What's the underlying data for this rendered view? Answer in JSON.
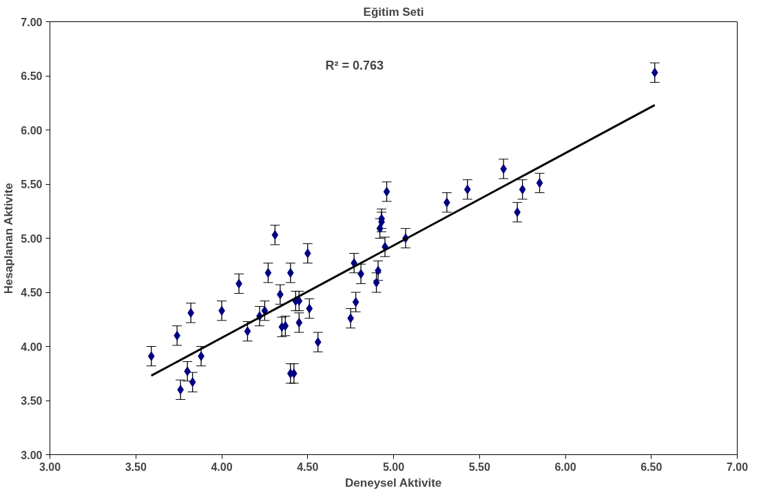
{
  "chart_data": {
    "type": "scatter",
    "title": "Eğitim Seti",
    "xlabel": "Deneysel Aktivite",
    "ylabel": "Hesaplanan Aktivite",
    "annotations": [
      "R² = 0.763"
    ],
    "xlim": [
      3,
      7
    ],
    "ylim": [
      3,
      7
    ],
    "xticks": [
      {
        "value": 3,
        "label": "3.00"
      },
      {
        "value": 3.5,
        "label": "3.50"
      },
      {
        "value": 4,
        "label": "4.00"
      },
      {
        "value": 4.5,
        "label": "4.50"
      },
      {
        "value": 5,
        "label": "5.00"
      },
      {
        "value": 5.5,
        "label": "5.50"
      },
      {
        "value": 6,
        "label": "6.00"
      },
      {
        "value": 6.5,
        "label": "6.50"
      },
      {
        "value": 7,
        "label": "7.00"
      }
    ],
    "yticks": [
      {
        "value": 3,
        "label": "3.00"
      },
      {
        "value": 3.5,
        "label": "3.50"
      },
      {
        "value": 4,
        "label": "4.00"
      },
      {
        "value": 4.5,
        "label": "4.50"
      },
      {
        "value": 5,
        "label": "5.00"
      },
      {
        "value": 5.5,
        "label": "5.50"
      },
      {
        "value": 6,
        "label": "6.00"
      },
      {
        "value": 6.5,
        "label": "6.50"
      },
      {
        "value": 7,
        "label": "7.00"
      }
    ],
    "grid": false,
    "series": [
      {
        "color": "#000080",
        "marker": "diamond",
        "x": [
          3.59,
          3.74,
          3.76,
          3.8,
          3.82,
          3.83,
          3.88,
          4.0,
          4.1,
          4.15,
          4.22,
          4.25,
          4.27,
          4.31,
          4.34,
          4.35,
          4.37,
          4.4,
          4.4,
          4.42,
          4.43,
          4.45,
          4.45,
          4.5,
          4.51,
          4.56,
          4.75,
          4.77,
          4.78,
          4.81,
          4.9,
          4.91,
          4.92,
          4.93,
          4.93,
          4.95,
          4.96,
          5.07,
          5.31,
          5.43,
          5.64,
          5.72,
          5.75,
          5.85,
          6.52
        ],
        "values": [
          3.91,
          4.1,
          3.6,
          3.77,
          4.31,
          3.67,
          3.91,
          4.33,
          4.58,
          4.14,
          4.28,
          4.33,
          4.68,
          5.03,
          4.48,
          4.18,
          4.19,
          3.75,
          4.68,
          3.75,
          4.42,
          4.42,
          4.22,
          4.86,
          4.35,
          4.04,
          4.26,
          4.77,
          4.41,
          4.67,
          4.59,
          4.7,
          5.09,
          5.15,
          5.18,
          4.92,
          5.43,
          5.0,
          5.33,
          5.45,
          5.64,
          5.24,
          5.45,
          5.51,
          6.53
        ],
        "errors": [
          0.09,
          0.09,
          0.09,
          0.09,
          0.09,
          0.09,
          0.09,
          0.09,
          0.09,
          0.09,
          0.09,
          0.09,
          0.09,
          0.09,
          0.09,
          0.09,
          0.09,
          0.09,
          0.09,
          0.09,
          0.09,
          0.09,
          0.09,
          0.09,
          0.09,
          0.09,
          0.09,
          0.09,
          0.09,
          0.09,
          0.09,
          0.09,
          0.09,
          0.09,
          0.09,
          0.09,
          0.09,
          0.09,
          0.09,
          0.09,
          0.09,
          0.09,
          0.09,
          0.09,
          0.09
        ]
      },
      {
        "type": "line",
        "color": "#000000",
        "x": [
          3.59,
          6.52
        ],
        "values": [
          3.73,
          6.23
        ],
        "line_style": "solid",
        "marker": "none"
      }
    ]
  }
}
